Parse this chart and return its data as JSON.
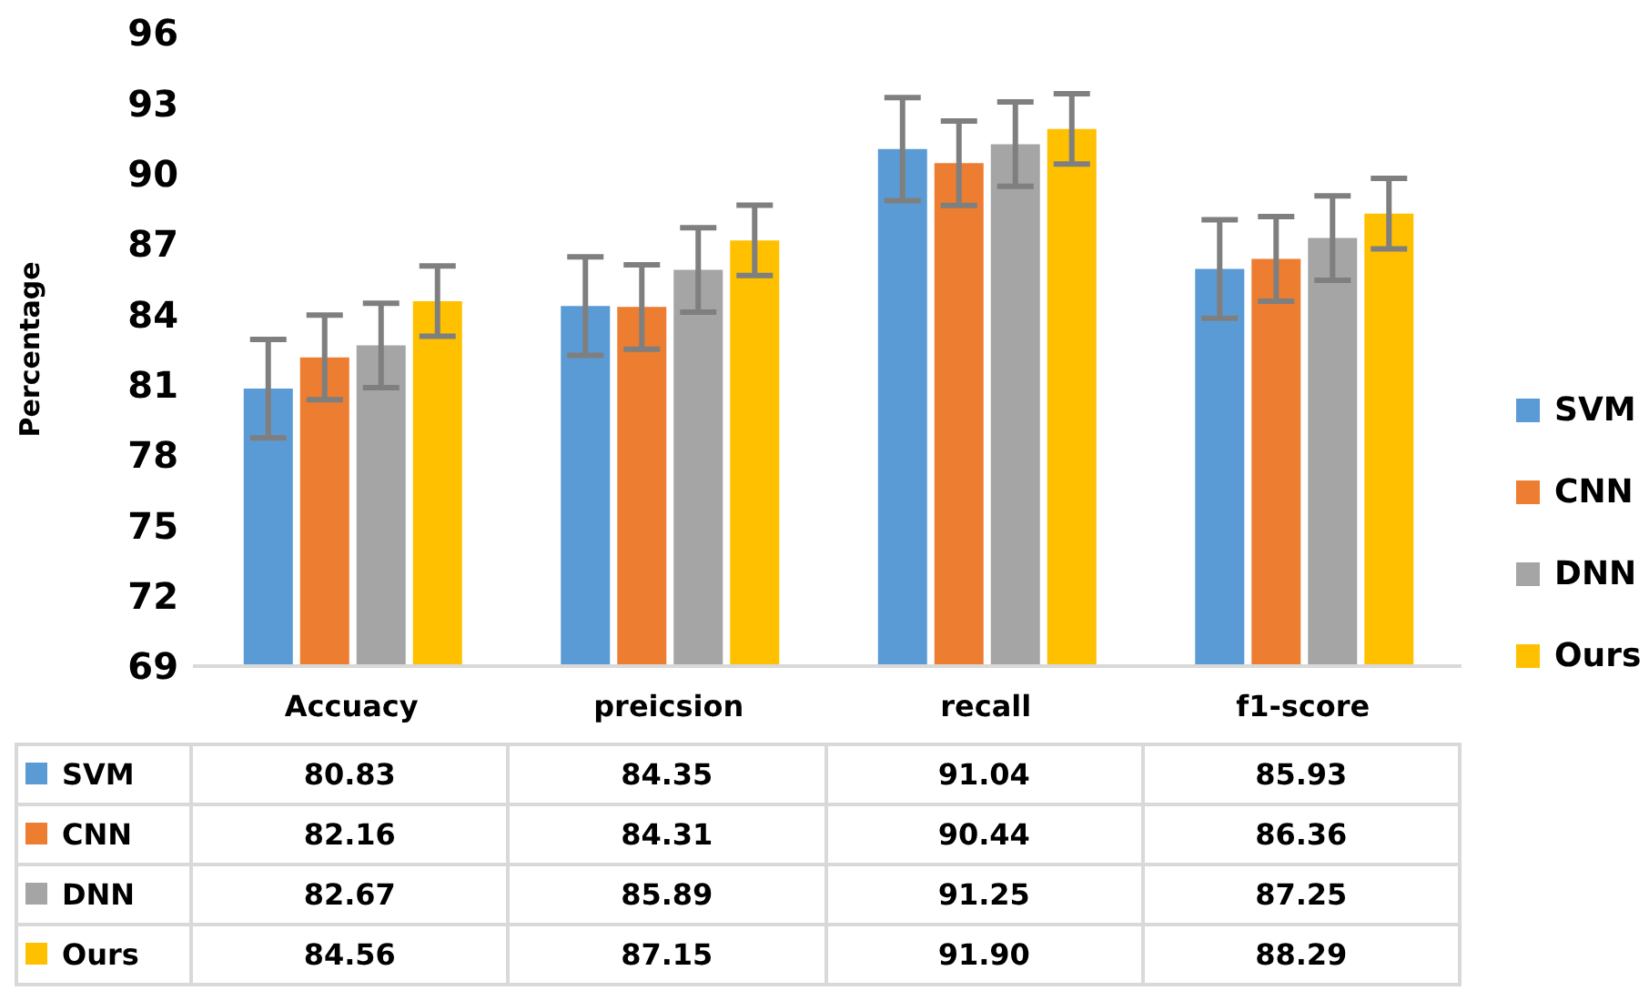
{
  "chart_data": {
    "type": "bar",
    "ylabel": "Percentage",
    "categories": [
      "Accuacy",
      "preicsion",
      "recall",
      "f1-score"
    ],
    "ylim": [
      69,
      96
    ],
    "yticks": [
      69,
      72,
      75,
      78,
      81,
      84,
      87,
      90,
      93,
      96
    ],
    "grid": false,
    "legend": "right",
    "series": [
      {
        "name": "SVM",
        "color": "#5b9bd5",
        "values": [
          80.83,
          84.35,
          91.04,
          85.93
        ],
        "errors": [
          2.1,
          2.1,
          2.2,
          2.1
        ],
        "value_labels": [
          "80.83",
          "84.35",
          "91.04",
          "85.93"
        ]
      },
      {
        "name": "CNN",
        "color": "#ed7d31",
        "values": [
          82.16,
          84.31,
          90.44,
          86.36
        ],
        "errors": [
          1.8,
          1.8,
          1.8,
          1.8
        ],
        "value_labels": [
          "82.16",
          "84.31",
          "90.44",
          "86.36"
        ]
      },
      {
        "name": "DNN",
        "color": "#a5a5a5",
        "values": [
          82.67,
          85.89,
          91.25,
          87.25
        ],
        "errors": [
          1.8,
          1.8,
          1.8,
          1.8
        ],
        "value_labels": [
          "82.67",
          "85.89",
          "91.25",
          "87.25"
        ]
      },
      {
        "name": "Ours",
        "color": "#ffc000",
        "values": [
          84.56,
          87.15,
          91.9,
          88.29
        ],
        "errors": [
          1.5,
          1.5,
          1.5,
          1.5
        ],
        "value_labels": [
          "84.56",
          "87.15",
          "91.90",
          "88.29"
        ]
      }
    ]
  }
}
